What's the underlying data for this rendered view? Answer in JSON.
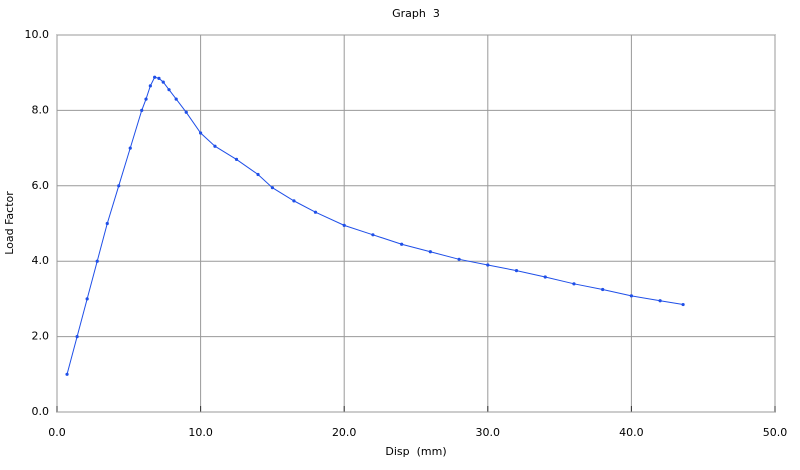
{
  "chart_data": {
    "type": "line",
    "title": "Graph  3",
    "x_label": "Disp  (mm)",
    "y_label": "Load Factor",
    "grid": true,
    "xlim": [
      0,
      50
    ],
    "ylim": [
      0,
      10
    ],
    "xticks": [
      {
        "value": 0,
        "label": "0.0"
      },
      {
        "value": 10,
        "label": "10.0"
      },
      {
        "value": 20,
        "label": "20.0"
      },
      {
        "value": 30,
        "label": "30.0"
      },
      {
        "value": 40,
        "label": "40.0"
      },
      {
        "value": 50,
        "label": "50.0"
      }
    ],
    "yticks": [
      {
        "value": 0,
        "label": "0.0"
      },
      {
        "value": 2,
        "label": "2.0"
      },
      {
        "value": 4,
        "label": "4.0"
      },
      {
        "value": 6,
        "label": "6.0"
      },
      {
        "value": 8,
        "label": "8.0"
      },
      {
        "value": 10,
        "label": "10.0"
      }
    ],
    "series": [
      {
        "color": "#1f4fe8",
        "x": [
          0.7,
          1.4,
          2.1,
          2.8,
          3.5,
          4.3,
          5.1,
          5.9,
          6.2,
          6.5,
          6.8,
          7.1,
          7.4,
          7.8,
          8.3,
          9.0,
          10.0,
          11.0,
          12.5,
          14.0,
          15.0,
          16.5,
          18.0,
          20.0,
          22.0,
          24.0,
          26.0,
          28.0,
          30.0,
          32.0,
          34.0,
          36.0,
          38.0,
          40.0,
          42.0,
          43.6
        ],
        "values": [
          1.0,
          2.0,
          3.0,
          4.0,
          5.0,
          6.0,
          7.0,
          8.0,
          8.3,
          8.65,
          8.88,
          8.85,
          8.75,
          8.55,
          8.3,
          7.95,
          7.4,
          7.05,
          6.7,
          6.3,
          5.95,
          5.6,
          5.3,
          4.95,
          4.7,
          4.45,
          4.25,
          4.05,
          3.9,
          3.75,
          3.58,
          3.4,
          3.25,
          3.08,
          2.95,
          2.85
        ]
      }
    ]
  }
}
